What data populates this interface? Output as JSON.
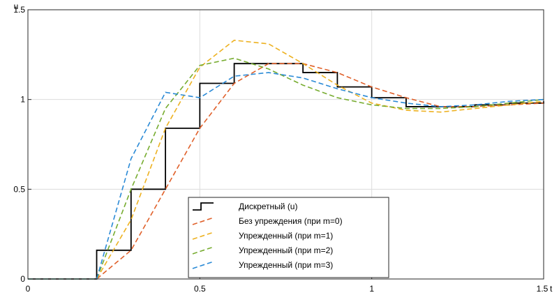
{
  "chart_data": {
    "type": "line",
    "title": "",
    "xlabel": "t",
    "ylabel": "u",
    "xlim": [
      0,
      1.5
    ],
    "ylim": [
      0,
      1.5
    ],
    "x_ticks": [
      0,
      0.5,
      1,
      1.5
    ],
    "x_tick_labels": [
      "0",
      "0.5",
      "1",
      "1.5"
    ],
    "y_ticks": [
      0,
      0.5,
      1,
      1.5
    ],
    "y_tick_labels": [
      "0",
      "0.5",
      "1",
      "1.5"
    ],
    "grid": true,
    "legend_position": "bottom-center",
    "series": [
      {
        "name": "Дискретный (u)",
        "color": "#000000",
        "style": "step",
        "x": [
          0,
          0.2,
          0.3,
          0.4,
          0.5,
          0.6,
          0.7,
          0.8,
          0.9,
          1.0,
          1.1,
          1.2,
          1.3,
          1.4,
          1.5
        ],
        "y": [
          0,
          0.16,
          0.5,
          0.84,
          1.09,
          1.2,
          1.2,
          1.15,
          1.07,
          1.01,
          0.96,
          0.96,
          0.97,
          0.98,
          0.99
        ]
      },
      {
        "name": "Без упреждения (при m=0)",
        "color": "#e0602a",
        "style": "dashed",
        "x": [
          0,
          0.2,
          0.3,
          0.4,
          0.5,
          0.6,
          0.7,
          0.8,
          0.9,
          1.0,
          1.1,
          1.2,
          1.3,
          1.4,
          1.5
        ],
        "y": [
          0,
          0,
          0.16,
          0.5,
          0.84,
          1.09,
          1.2,
          1.2,
          1.15,
          1.07,
          1.01,
          0.96,
          0.96,
          0.97,
          0.98
        ]
      },
      {
        "name": "Упрежденный (при m=1)",
        "color": "#edb120",
        "style": "dashed",
        "x": [
          0,
          0.2,
          0.3,
          0.4,
          0.5,
          0.6,
          0.7,
          0.8,
          0.9,
          1.0,
          1.1,
          1.2,
          1.3,
          1.4,
          1.5
        ],
        "y": [
          0,
          0,
          0.33,
          0.84,
          1.18,
          1.33,
          1.31,
          1.2,
          1.08,
          0.98,
          0.94,
          0.93,
          0.95,
          0.97,
          0.99
        ]
      },
      {
        "name": "Упрежденный (при m=2)",
        "color": "#77ac30",
        "style": "dashed",
        "x": [
          0,
          0.2,
          0.3,
          0.4,
          0.5,
          0.6,
          0.7,
          0.8,
          0.9,
          1.0,
          1.1,
          1.2,
          1.3,
          1.4,
          1.5
        ],
        "y": [
          0,
          0,
          0.5,
          0.95,
          1.19,
          1.23,
          1.17,
          1.08,
          1.01,
          0.97,
          0.95,
          0.95,
          0.96,
          0.98,
          1.0
        ]
      },
      {
        "name": "Упрежденный (при m=3)",
        "color": "#2a8ad6",
        "style": "dashed",
        "x": [
          0,
          0.2,
          0.3,
          0.4,
          0.5,
          0.6,
          0.7,
          0.8,
          0.9,
          1.0,
          1.1,
          1.2,
          1.3,
          1.4,
          1.5
        ],
        "y": [
          0,
          0,
          0.67,
          1.04,
          1.01,
          1.13,
          1.15,
          1.12,
          1.06,
          1.01,
          0.98,
          0.96,
          0.97,
          0.99,
          1.0
        ]
      }
    ]
  }
}
